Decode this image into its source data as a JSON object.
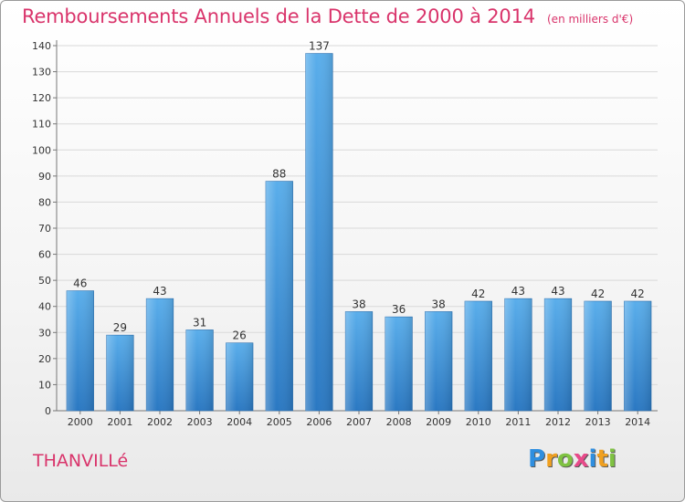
{
  "chart_data": {
    "type": "bar",
    "title": "Remboursements Annuels de la Dette de 2000 à 2014",
    "subtitle": "(en milliers d'€)",
    "xlabel": "",
    "ylabel": "",
    "categories": [
      "2000",
      "2001",
      "2002",
      "2003",
      "2004",
      "2005",
      "2006",
      "2007",
      "2008",
      "2009",
      "2010",
      "2011",
      "2012",
      "2013",
      "2014"
    ],
    "values": [
      46,
      29,
      43,
      31,
      26,
      88,
      137,
      38,
      36,
      38,
      42,
      43,
      43,
      42,
      42
    ],
    "data_labels": [
      "46",
      "29",
      "43",
      "31",
      "26",
      "88",
      "137",
      "38",
      "36",
      "38",
      "42",
      "43",
      "43",
      "42",
      "42"
    ],
    "ylim": [
      0,
      140
    ],
    "yticks": [
      0,
      10,
      20,
      30,
      40,
      50,
      60,
      70,
      80,
      90,
      100,
      110,
      120,
      130,
      140
    ],
    "ytick_labels": [
      "0",
      "10",
      "20",
      "30",
      "40",
      "50",
      "60",
      "70",
      "80",
      "90",
      "100",
      "110",
      "120",
      "130",
      "140"
    ],
    "grid": true,
    "legend": "none",
    "bar_color": "#3a8fd6"
  },
  "footer": {
    "commune": "THANVILLé",
    "brand": [
      "P",
      "r",
      "o",
      "x",
      "i",
      "t",
      "i"
    ]
  },
  "colors": {
    "title": "#d9346b",
    "brand": [
      "#2f8fe0",
      "#f0a020",
      "#7fc242",
      "#e84a8a",
      "#2f8fe0",
      "#f0a020",
      "#7fc242"
    ]
  }
}
